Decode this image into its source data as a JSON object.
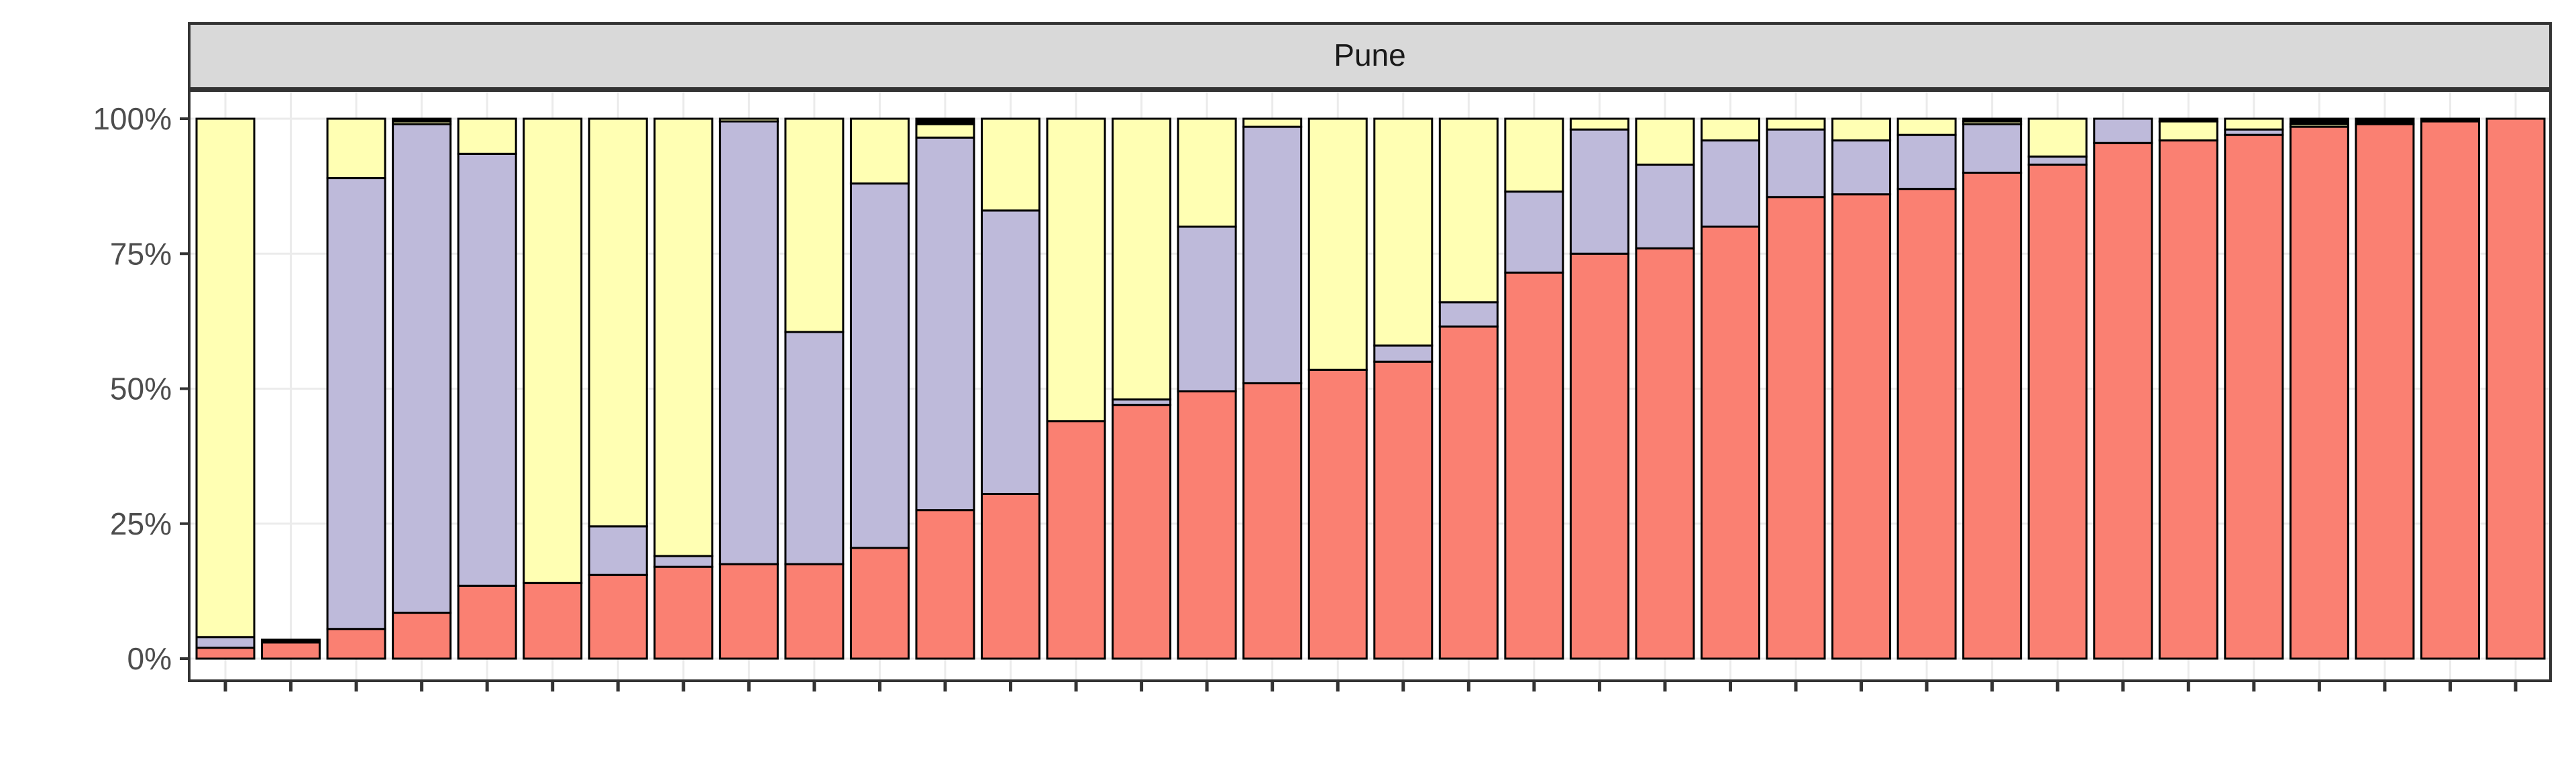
{
  "chart_data": {
    "type": "bar",
    "stacked": true,
    "facet_title": "Pune",
    "xlabel": "",
    "ylabel": "",
    "ylim": [
      0,
      100
    ],
    "y_ticks": [
      "0%",
      "25%",
      "50%",
      "75%",
      "100%"
    ],
    "grid": true,
    "legend": "none",
    "colors": [
      "#FA8072",
      "#BEBADA",
      "#FFFFB3",
      "#000000"
    ],
    "series": [
      {
        "values": [
          2,
          3,
          5.5,
          8.5,
          13.5,
          14,
          15.5,
          17,
          17.5,
          17.5,
          20.5,
          27.5,
          30.5,
          44,
          47,
          49.5,
          51,
          53.5,
          55,
          61.5,
          71.5,
          75,
          76,
          80,
          85.5,
          86,
          87,
          90,
          91.5,
          95.5,
          96,
          97,
          98.5,
          99,
          99.5,
          100
        ]
      },
      {
        "values": [
          2,
          0,
          83.5,
          90.5,
          80,
          0,
          9,
          2,
          82,
          43,
          67.5,
          69,
          52.5,
          0,
          1,
          30.5,
          47.5,
          0,
          3,
          4.5,
          15,
          23,
          15.5,
          16,
          12.5,
          10,
          10,
          9,
          1.5,
          4.5,
          0,
          1,
          0,
          0,
          0,
          0
        ]
      },
      {
        "values": [
          96,
          0,
          11,
          0.5,
          6.5,
          86,
          75.5,
          81,
          0.5,
          39.5,
          12,
          2.5,
          17,
          56,
          52,
          20,
          1.5,
          46.5,
          42,
          34,
          13.5,
          2,
          8.5,
          4,
          2,
          4,
          3,
          0.5,
          7,
          0,
          3.5,
          2,
          0.5,
          0,
          0,
          0
        ]
      },
      {
        "values": [
          0,
          0.5,
          0,
          0.5,
          0,
          0,
          0,
          0,
          0,
          0,
          0,
          1,
          0,
          0,
          0,
          0,
          0,
          0,
          0,
          0,
          0,
          0,
          0,
          0,
          0,
          0,
          0,
          0.5,
          0,
          0,
          0.5,
          0,
          1,
          1,
          0.5,
          0
        ]
      }
    ]
  }
}
